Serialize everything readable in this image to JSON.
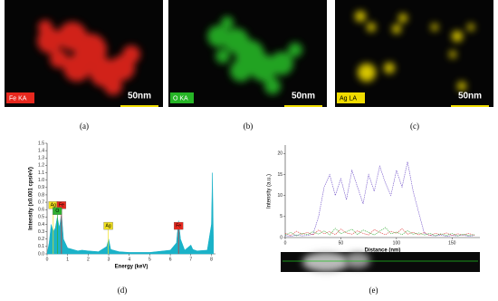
{
  "panels": [
    {
      "label": "(a)",
      "element": "Fe KA",
      "scale": "50nm",
      "color": "#e8281e"
    },
    {
      "label": "(b)",
      "element": "O KA",
      "scale": "50nm",
      "color": "#26b526"
    },
    {
      "label": "(c)",
      "element": "Ag LA",
      "scale": "50nm",
      "color": "#f0dc00"
    }
  ],
  "chart_data": [
    {
      "type": "area",
      "label": "(d)",
      "xlabel": "Energy (keV)",
      "ylabel": "Intensity (x0.001 cps/eV)",
      "xlim": [
        0,
        8.2
      ],
      "ylim": [
        0,
        1.5
      ],
      "xticks": [
        0,
        1,
        2,
        3,
        4,
        5,
        6,
        7,
        8
      ],
      "yticks": [
        {
          "value": 0,
          "label": "0.0"
        },
        0.1,
        0.2,
        0.3,
        0.4,
        0.5,
        0.6,
        0.7,
        0.8,
        0.9,
        {
          "value": 1,
          "label": "1.0"
        },
        1.1,
        1.2,
        1.3,
        1.4,
        1.5
      ],
      "x": [
        0,
        0.1,
        0.2,
        0.3,
        0.4,
        0.5,
        0.6,
        0.7,
        0.8,
        1,
        1.5,
        1.7,
        2,
        2.5,
        2.9,
        3.0,
        3.1,
        3.5,
        4,
        5,
        6,
        6.3,
        6.4,
        6.5,
        6.7,
        7.0,
        7.1,
        7.3,
        7.8,
        8.0,
        8.05,
        8.1
      ],
      "series": [
        {
          "color": "#1ab2c8",
          "values": [
            0,
            0.15,
            0.4,
            0.3,
            0.35,
            0.5,
            0.35,
            0.55,
            0.2,
            0.08,
            0.04,
            0.05,
            0.04,
            0.03,
            0.1,
            0.2,
            0.06,
            0.03,
            0.02,
            0.02,
            0.05,
            0.15,
            0.45,
            0.2,
            0.05,
            0.12,
            0.06,
            0.04,
            0.05,
            0.4,
            1.1,
            0.2
          ]
        }
      ],
      "annotations": [
        {
          "text": "Ag",
          "x": 0.3,
          "color": "#f0e020"
        },
        {
          "text": "Fe",
          "x": 0.7,
          "color": "#e8281e"
        },
        {
          "text": "O",
          "x": 0.5,
          "color": "#30b030"
        },
        {
          "text": "Ag",
          "x": 2.98,
          "color": "#f0e020"
        },
        {
          "text": "Fe",
          "x": 6.4,
          "color": "#e8281e"
        }
      ]
    },
    {
      "type": "line",
      "label": "(e)",
      "xlabel": "Distance (nm)",
      "ylabel": "Intensity (a.u.)",
      "xlim": [
        0,
        175
      ],
      "ylim": [
        0,
        22
      ],
      "xticks": [
        0,
        50,
        100,
        150
      ],
      "yticks": [
        0,
        5,
        10,
        15,
        20
      ],
      "x": [
        0,
        5,
        10,
        15,
        20,
        25,
        30,
        35,
        40,
        45,
        50,
        55,
        60,
        65,
        70,
        75,
        80,
        85,
        90,
        95,
        100,
        105,
        110,
        115,
        120,
        125,
        130,
        135,
        140,
        145,
        150,
        155,
        160,
        165,
        170
      ],
      "series": [
        {
          "color": "#7050c8",
          "values": [
            0.5,
            0.3,
            0.6,
            0.4,
            0.5,
            0.8,
            5,
            12,
            15,
            10,
            14,
            9,
            16,
            12,
            8,
            15,
            11,
            17,
            13,
            10,
            16,
            12,
            18,
            11,
            6,
            1,
            0.5,
            0.4,
            0.6,
            0.3,
            0.5,
            0.4,
            0.6,
            0.3,
            0.5
          ]
        },
        {
          "color": "#e04040",
          "values": [
            1,
            0.5,
            1.5,
            0.8,
            1.2,
            0.6,
            1.8,
            0.9,
            1.4,
            0.7,
            2,
            1.1,
            0.8,
            1.6,
            1,
            0.6,
            1.9,
            1.2,
            0.7,
            1.5,
            1,
            2.1,
            0.8,
            1.3,
            0.6,
            1.2,
            0.5,
            1,
            0.7,
            1.1,
            0.5,
            0.9,
            0.6,
            1,
            0.5
          ]
        },
        {
          "color": "#40b040",
          "values": [
            0.6,
            1.2,
            0.4,
            1,
            0.7,
            1.4,
            0.8,
            1.6,
            0.6,
            2.2,
            0.9,
            1.4,
            2,
            0.7,
            1.8,
            1.2,
            0.6,
            1.5,
            2.4,
            0.9,
            1.3,
            0.7,
            1.6,
            0.8,
            1.1,
            0.6,
            1,
            0.4,
            0.9,
            0.5,
            1,
            0.4,
            0.8,
            0.5,
            0.7
          ]
        }
      ]
    }
  ]
}
